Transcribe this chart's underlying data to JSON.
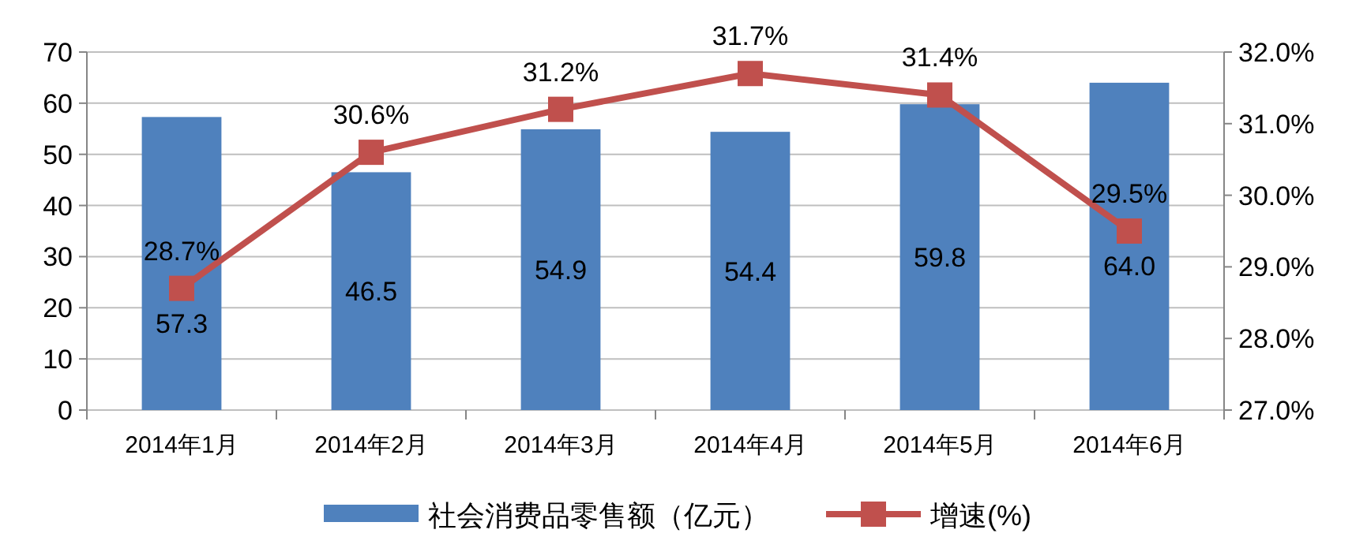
{
  "chart_data": {
    "type": "bar",
    "categories": [
      "2014年1月",
      "2014年2月",
      "2014年3月",
      "2014年4月",
      "2014年5月",
      "2014年6月"
    ],
    "series": [
      {
        "name": "社会消费品零售额（亿元）",
        "color": "#4f81bd",
        "values": [
          57.3,
          46.5,
          54.9,
          54.4,
          59.8,
          64.0
        ],
        "value_labels": [
          "57.3",
          "46.5",
          "54.9",
          "54.4",
          "59.8",
          "64.0"
        ]
      },
      {
        "name": "增速(%)",
        "type": "line",
        "axis": "y2",
        "color": "#c0504d",
        "marker": "square",
        "values": [
          28.7,
          30.6,
          31.2,
          31.7,
          31.4,
          29.5
        ],
        "value_labels": [
          "28.7%",
          "30.6%",
          "31.2%",
          "31.7%",
          "31.4%",
          "29.5%"
        ]
      }
    ],
    "ylim": [
      0,
      70
    ],
    "yticks": [
      0,
      10,
      20,
      30,
      40,
      50,
      60,
      70
    ],
    "y2lim": [
      27,
      32
    ],
    "y2ticks": [
      {
        "value": 27,
        "label": "27.0%"
      },
      {
        "value": 28,
        "label": "28.0%"
      },
      {
        "value": 29,
        "label": "29.0%"
      },
      {
        "value": 30,
        "label": "30.0%"
      },
      {
        "value": 31,
        "label": "31.0%"
      },
      {
        "value": 32,
        "label": "32.0%"
      }
    ],
    "grid": "y",
    "legend": "bottom"
  }
}
